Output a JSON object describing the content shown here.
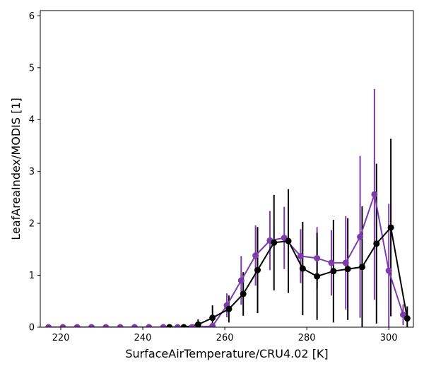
{
  "chart_data": {
    "type": "line",
    "xlabel": "SurfaceAirTemperature/CRU4.02 [K]",
    "ylabel": "LeafAreaIndex/MODIS [1]",
    "xlim": [
      215,
      306
    ],
    "ylim": [
      0,
      6.1
    ],
    "xticks": [
      220,
      240,
      260,
      280,
      300
    ],
    "yticks": [
      0,
      1,
      2,
      3,
      4,
      5,
      6
    ],
    "grid": false,
    "series": [
      {
        "color": "#7e3bab",
        "x": [
          217,
          220.5,
          224,
          227.5,
          231,
          234.5,
          238,
          241.5,
          245,
          248.5,
          252,
          257,
          260.5,
          264,
          267.5,
          271,
          274.5,
          278.5,
          282.5,
          286,
          289.5,
          293,
          296.5,
          300,
          303.5
        ],
        "y": [
          0,
          0,
          0,
          0,
          0,
          0,
          0,
          0,
          0,
          0,
          0,
          0.02,
          0.42,
          0.9,
          1.38,
          1.67,
          1.72,
          1.37,
          1.33,
          1.24,
          1.24,
          1.74,
          2.56,
          1.09,
          0.24
        ],
        "err": [
          0,
          0,
          0,
          0,
          0,
          0,
          0,
          0,
          0,
          0,
          0,
          0,
          0.23,
          0.47,
          0.58,
          0.57,
          0.6,
          0.52,
          0.6,
          0.63,
          0.9,
          1.56,
          2.03,
          1.29,
          0.2
        ]
      },
      {
        "color": "#000000",
        "x": [
          246.5,
          250,
          253.5,
          257,
          261,
          264.5,
          268,
          272,
          275.5,
          279,
          282.5,
          286.5,
          290,
          293.5,
          297,
          300.5,
          304.5
        ],
        "y": [
          0,
          0,
          0.05,
          0.18,
          0.35,
          0.64,
          1.1,
          1.63,
          1.66,
          1.13,
          0.98,
          1.08,
          1.12,
          1.16,
          1.61,
          1.92,
          0.17
        ],
        "err": [
          0,
          0,
          0.1,
          0.24,
          0.26,
          0.42,
          0.83,
          0.92,
          1.0,
          0.9,
          0.84,
          0.99,
          0.98,
          1.17,
          1.54,
          1.71,
          0.23
        ]
      }
    ]
  }
}
